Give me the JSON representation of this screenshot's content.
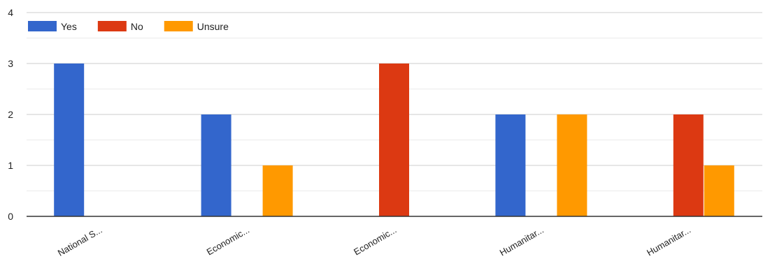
{
  "chart_data": {
    "type": "bar",
    "categories": [
      "National S...",
      "Economic...",
      "Economic...",
      "Humanitar...",
      "Humanitar..."
    ],
    "series": [
      {
        "name": "Yes",
        "color": "#3366cc",
        "values": [
          3,
          2,
          0,
          2,
          0
        ]
      },
      {
        "name": "No",
        "color": "#dc3912",
        "values": [
          0,
          0,
          3,
          0,
          2
        ]
      },
      {
        "name": "Unsure",
        "color": "#ff9900",
        "values": [
          0,
          1,
          0,
          2,
          1
        ]
      }
    ],
    "ylim": [
      0,
      4
    ],
    "yticks": [
      0,
      1,
      2,
      3,
      4
    ],
    "grid": true,
    "legend_position": "top-left",
    "title": "",
    "xlabel": "",
    "ylabel": ""
  }
}
